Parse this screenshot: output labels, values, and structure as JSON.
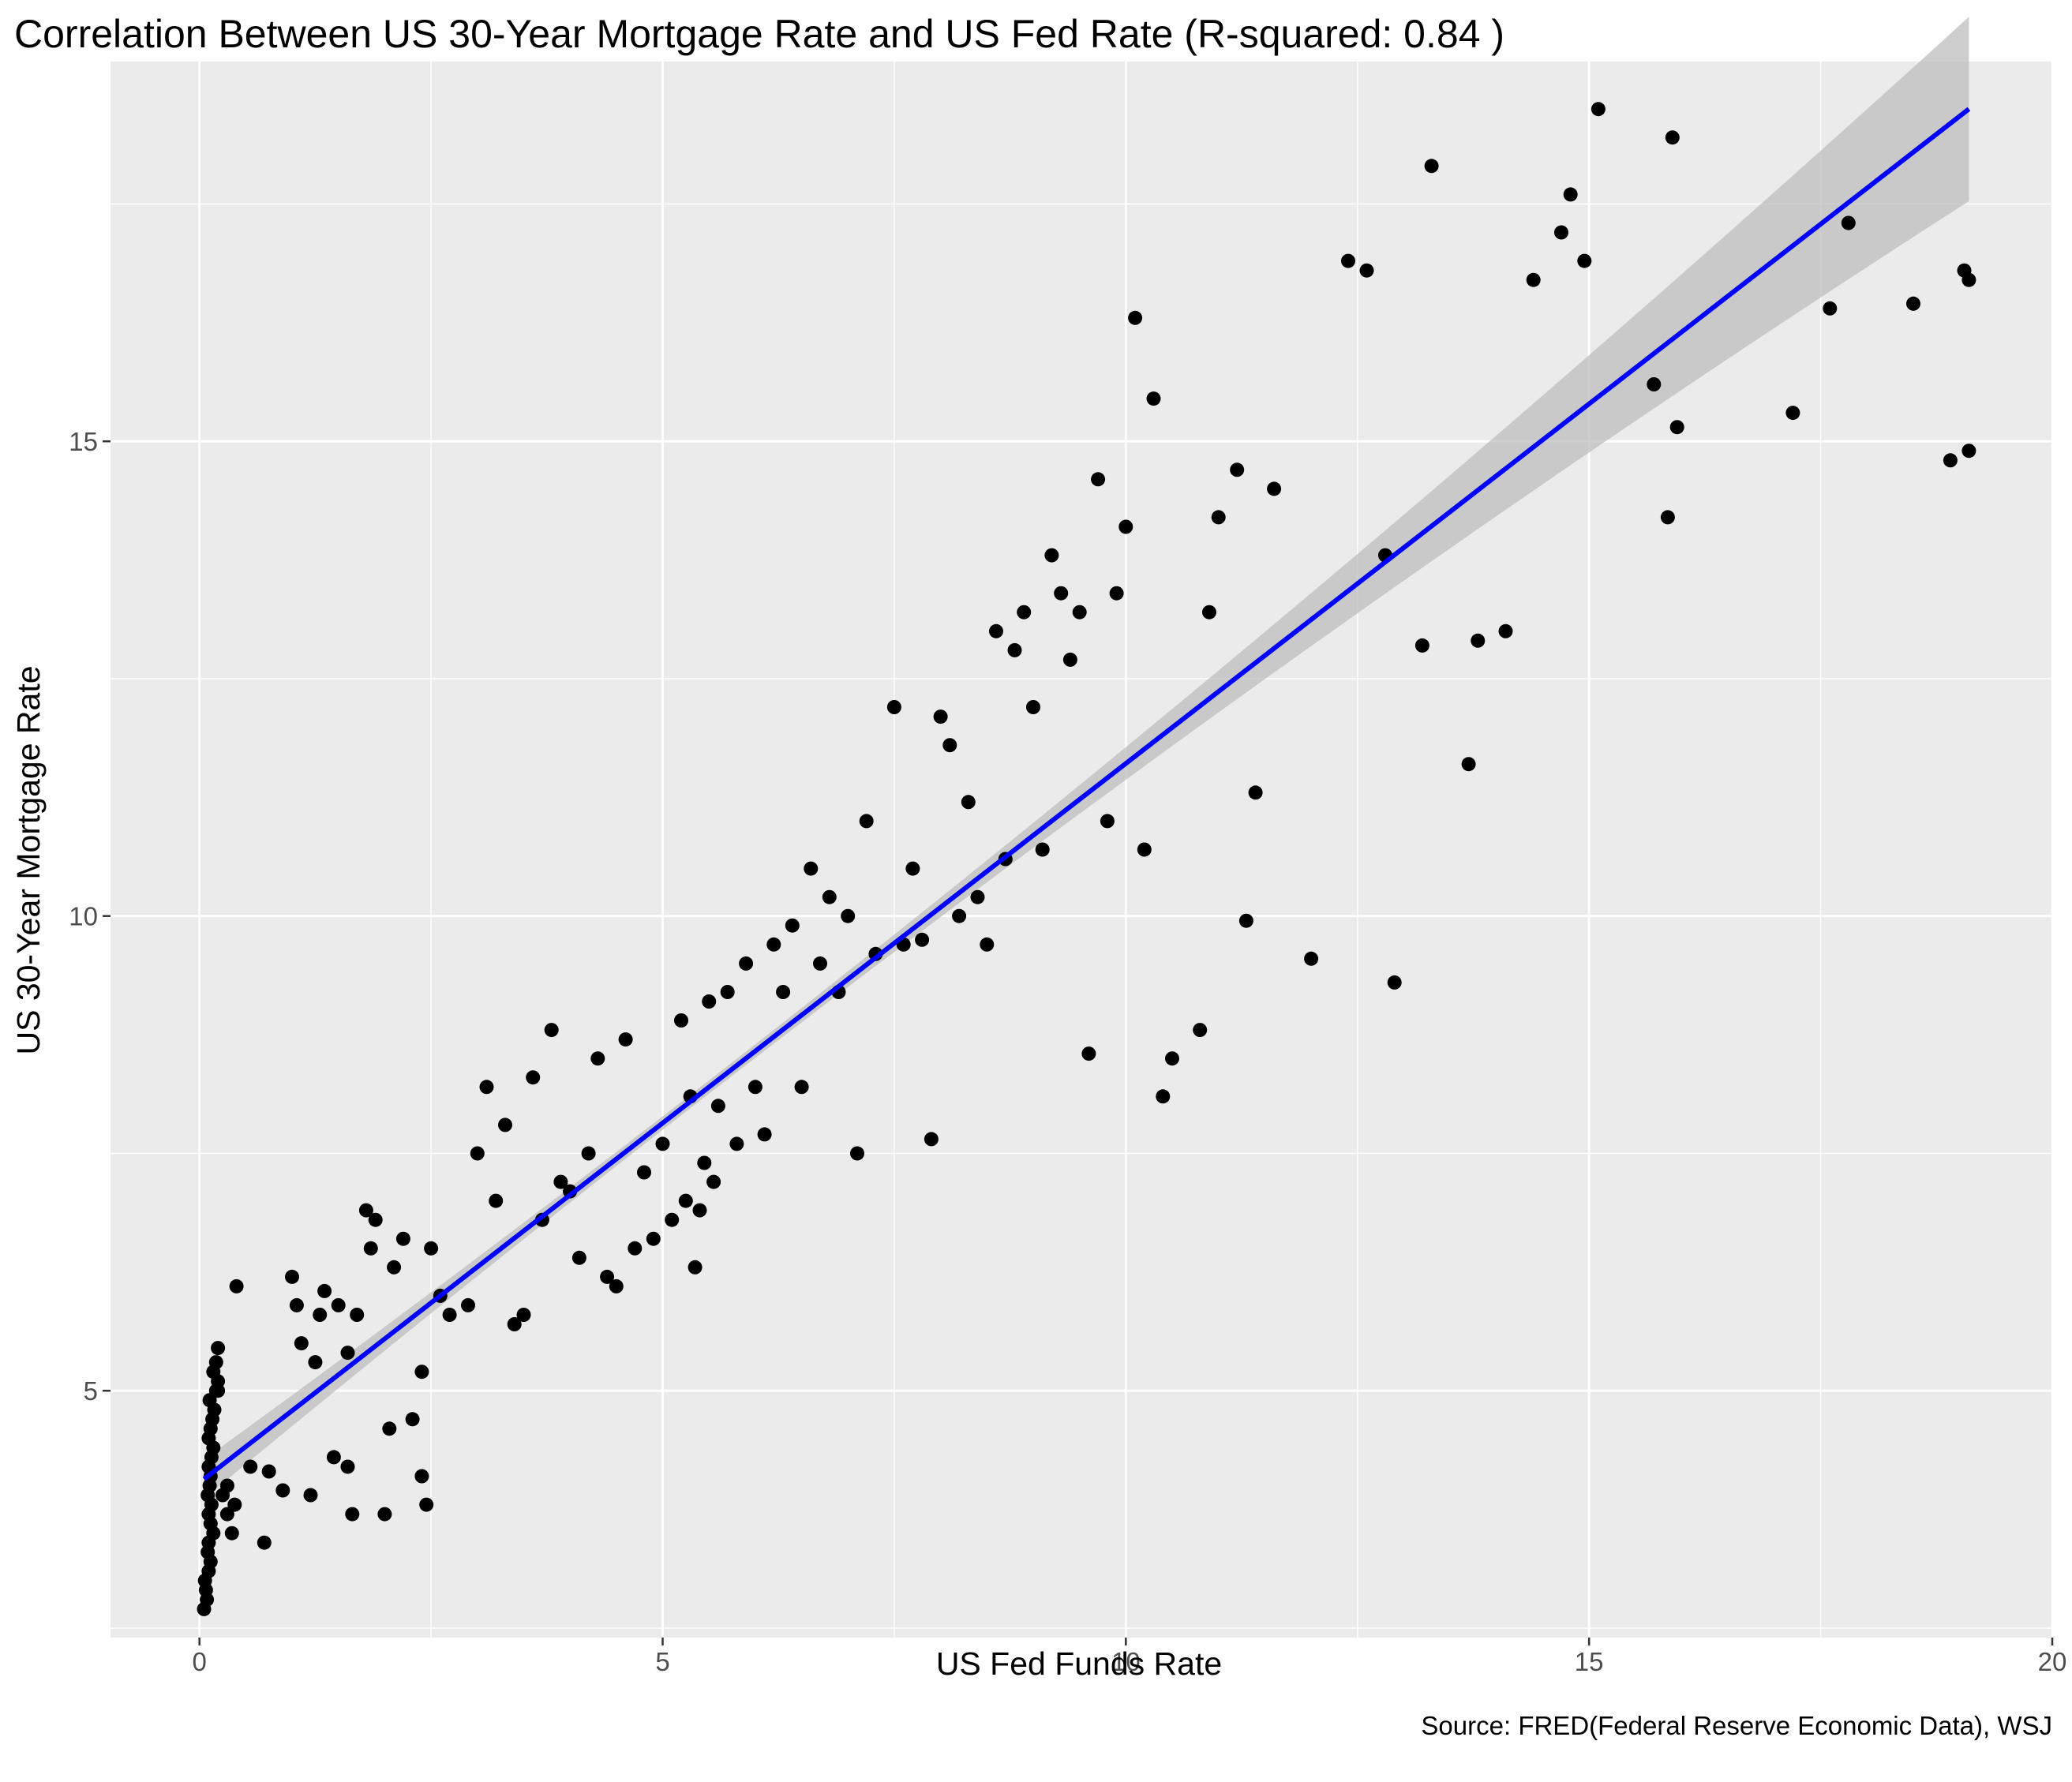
{
  "chart_data": {
    "type": "scatter",
    "title": "Correlation Between US 30-Year Mortgage Rate and US Fed Rate (R-squared: 0.84 )",
    "xlabel": "US Fed Funds Rate",
    "ylabel": "US 30-Year Mortgage Rate",
    "caption": "Source: FRED(Federal Reserve Economic Data), WSJ",
    "xlim": [
      -0.96,
      20.0
    ],
    "ylim": [
      2.4,
      19.0
    ],
    "x_ticks": [
      0,
      5,
      10,
      15,
      20
    ],
    "y_ticks": [
      5,
      10,
      15
    ],
    "grid": true,
    "colors": {
      "panel": "#ebebeb",
      "grid": "#ffffff",
      "points": "#000000",
      "fit_line": "#0000ff",
      "confidence_band": "#bebebe"
    },
    "fit": {
      "method": "linear",
      "x": [
        0.05,
        19.1
      ],
      "y": [
        4.07,
        18.5
      ],
      "band": true
    },
    "points": [
      [
        0.05,
        2.7
      ],
      [
        0.08,
        2.8
      ],
      [
        0.07,
        2.9
      ],
      [
        0.06,
        3.0
      ],
      [
        0.1,
        3.1
      ],
      [
        0.12,
        3.2
      ],
      [
        0.09,
        3.3
      ],
      [
        0.1,
        3.4
      ],
      [
        0.15,
        3.5
      ],
      [
        0.12,
        3.6
      ],
      [
        0.1,
        3.7
      ],
      [
        0.13,
        3.8
      ],
      [
        0.09,
        3.9
      ],
      [
        0.11,
        4.0
      ],
      [
        0.12,
        4.1
      ],
      [
        0.1,
        4.2
      ],
      [
        0.13,
        4.3
      ],
      [
        0.15,
        4.4
      ],
      [
        0.1,
        4.5
      ],
      [
        0.12,
        4.6
      ],
      [
        0.14,
        4.7
      ],
      [
        0.16,
        4.8
      ],
      [
        0.11,
        4.9
      ],
      [
        0.18,
        5.0
      ],
      [
        0.2,
        5.1
      ],
      [
        0.15,
        5.2
      ],
      [
        0.18,
        5.3
      ],
      [
        0.2,
        5.45
      ],
      [
        0.25,
        3.9
      ],
      [
        0.3,
        3.7
      ],
      [
        0.35,
        3.5
      ],
      [
        0.38,
        3.8
      ],
      [
        0.4,
        6.1
      ],
      [
        0.55,
        4.2
      ],
      [
        0.7,
        3.4
      ],
      [
        0.75,
        4.15
      ],
      [
        0.9,
        3.95
      ],
      [
        1.0,
        6.2
      ],
      [
        1.05,
        5.9
      ],
      [
        1.1,
        5.5
      ],
      [
        1.2,
        3.9
      ],
      [
        1.25,
        5.3
      ],
      [
        1.3,
        5.8
      ],
      [
        1.35,
        6.05
      ],
      [
        1.45,
        4.3
      ],
      [
        1.5,
        5.9
      ],
      [
        1.6,
        4.2
      ],
      [
        1.65,
        3.7
      ],
      [
        1.7,
        5.8
      ],
      [
        1.8,
        6.9
      ],
      [
        1.85,
        6.5
      ],
      [
        1.9,
        6.8
      ],
      [
        2.0,
        3.7
      ],
      [
        2.05,
        4.6
      ],
      [
        2.1,
        6.3
      ],
      [
        2.2,
        6.6
      ],
      [
        2.3,
        4.7
      ],
      [
        2.4,
        4.1
      ],
      [
        2.45,
        3.8
      ],
      [
        2.5,
        6.5
      ],
      [
        2.6,
        6.0
      ],
      [
        2.7,
        5.8
      ],
      [
        2.9,
        5.9
      ],
      [
        3.0,
        7.5
      ],
      [
        3.1,
        8.2
      ],
      [
        3.2,
        7.0
      ],
      [
        3.3,
        7.8
      ],
      [
        3.4,
        5.7
      ],
      [
        3.5,
        5.8
      ],
      [
        3.6,
        8.3
      ],
      [
        3.7,
        6.8
      ],
      [
        3.8,
        8.8
      ],
      [
        3.9,
        7.2
      ],
      [
        4.0,
        7.1
      ],
      [
        4.1,
        6.4
      ],
      [
        4.2,
        7.5
      ],
      [
        4.3,
        8.5
      ],
      [
        4.4,
        6.2
      ],
      [
        4.5,
        6.1
      ],
      [
        4.6,
        8.7
      ],
      [
        4.7,
        6.5
      ],
      [
        4.8,
        7.3
      ],
      [
        4.9,
        6.6
      ],
      [
        5.0,
        7.6
      ],
      [
        5.1,
        6.8
      ],
      [
        5.2,
        8.9
      ],
      [
        5.25,
        7.0
      ],
      [
        5.3,
        8.1
      ],
      [
        5.35,
        6.3
      ],
      [
        5.4,
        6.9
      ],
      [
        5.45,
        7.4
      ],
      [
        5.5,
        9.1
      ],
      [
        5.55,
        7.2
      ],
      [
        5.6,
        8.0
      ],
      [
        5.7,
        9.2
      ],
      [
        5.8,
        7.6
      ],
      [
        5.9,
        9.5
      ],
      [
        6.0,
        8.2
      ],
      [
        6.1,
        7.7
      ],
      [
        6.2,
        9.7
      ],
      [
        6.3,
        9.2
      ],
      [
        6.4,
        9.9
      ],
      [
        6.5,
        8.2
      ],
      [
        6.6,
        10.5
      ],
      [
        6.7,
        9.5
      ],
      [
        6.8,
        10.2
      ],
      [
        6.9,
        9.2
      ],
      [
        7.0,
        10.0
      ],
      [
        7.1,
        7.5
      ],
      [
        7.2,
        11.0
      ],
      [
        7.3,
        9.6
      ],
      [
        7.5,
        12.2
      ],
      [
        7.6,
        9.7
      ],
      [
        7.7,
        10.5
      ],
      [
        7.8,
        9.75
      ],
      [
        7.9,
        7.65
      ],
      [
        8.0,
        12.1
      ],
      [
        8.1,
        11.8
      ],
      [
        8.2,
        10.0
      ],
      [
        8.3,
        11.2
      ],
      [
        8.4,
        10.2
      ],
      [
        8.5,
        9.7
      ],
      [
        8.6,
        13.0
      ],
      [
        8.7,
        10.6
      ],
      [
        8.8,
        12.8
      ],
      [
        8.9,
        13.2
      ],
      [
        9.0,
        12.2
      ],
      [
        9.1,
        10.7
      ],
      [
        9.2,
        13.8
      ],
      [
        9.3,
        13.4
      ],
      [
        9.4,
        12.7
      ],
      [
        9.5,
        13.2
      ],
      [
        9.6,
        8.55
      ],
      [
        9.7,
        14.6
      ],
      [
        9.8,
        11.0
      ],
      [
        9.9,
        13.4
      ],
      [
        10.0,
        14.1
      ],
      [
        10.1,
        16.3
      ],
      [
        10.2,
        10.7
      ],
      [
        10.3,
        15.45
      ],
      [
        10.4,
        8.1
      ],
      [
        10.5,
        8.5
      ],
      [
        10.8,
        8.8
      ],
      [
        10.9,
        13.2
      ],
      [
        11.0,
        14.2
      ],
      [
        11.2,
        14.7
      ],
      [
        11.3,
        9.95
      ],
      [
        11.4,
        11.3
      ],
      [
        11.6,
        14.5
      ],
      [
        12.0,
        9.55
      ],
      [
        12.4,
        16.9
      ],
      [
        12.6,
        16.8
      ],
      [
        12.8,
        13.8
      ],
      [
        12.9,
        9.3
      ],
      [
        13.2,
        12.85
      ],
      [
        13.3,
        17.9
      ],
      [
        13.7,
        11.6
      ],
      [
        13.8,
        12.9
      ],
      [
        14.1,
        13.0
      ],
      [
        14.4,
        16.7
      ],
      [
        14.7,
        17.2
      ],
      [
        14.8,
        17.6
      ],
      [
        14.95,
        16.9
      ],
      [
        15.1,
        18.5
      ],
      [
        15.7,
        15.6
      ],
      [
        15.85,
        14.2
      ],
      [
        15.9,
        18.2
      ],
      [
        15.95,
        15.15
      ],
      [
        17.2,
        15.3
      ],
      [
        17.6,
        16.4
      ],
      [
        17.8,
        17.3
      ],
      [
        18.5,
        16.45
      ],
      [
        18.9,
        14.8
      ],
      [
        19.05,
        16.8
      ],
      [
        19.1,
        14.9
      ],
      [
        19.1,
        16.7
      ],
      [
        0.2,
        5.0
      ],
      [
        0.3,
        4.0
      ],
      [
        1.6,
        5.4
      ],
      [
        2.4,
        5.2
      ]
    ]
  }
}
